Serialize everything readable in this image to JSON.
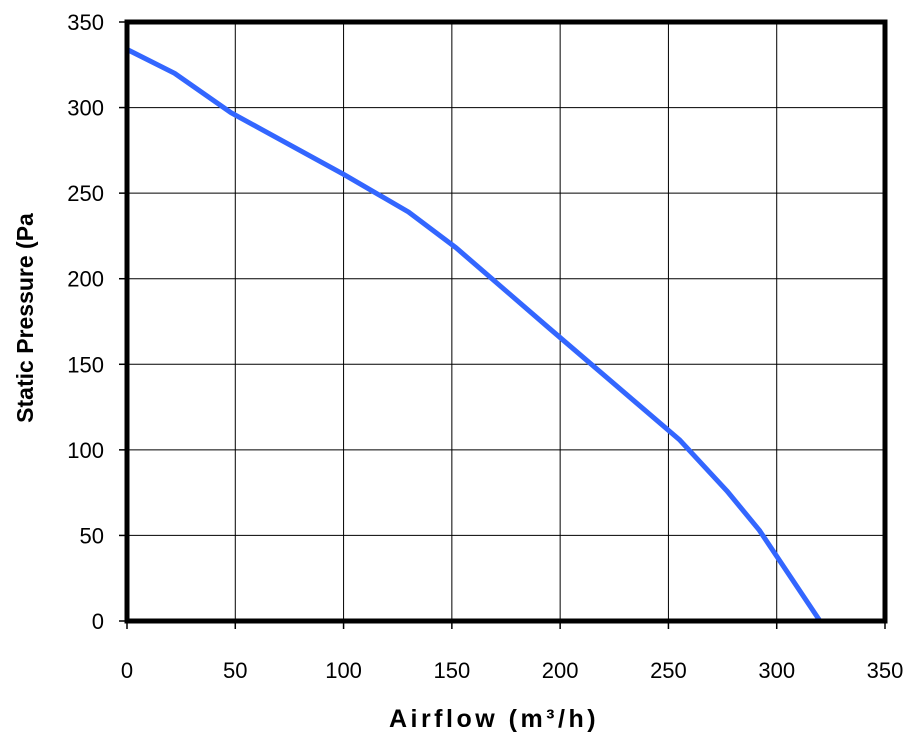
{
  "chart_data": {
    "type": "line",
    "title": "",
    "xlabel": "Airflow (m³/h)",
    "ylabel": "Static Pressure (Pa",
    "xlim": [
      0,
      350
    ],
    "ylim": [
      0,
      350
    ],
    "x_ticks": [
      "0",
      "50",
      "100",
      "150",
      "200",
      "250",
      "300",
      "350"
    ],
    "y_ticks": [
      "0",
      "50",
      "100",
      "150",
      "200",
      "250",
      "300",
      "350"
    ],
    "grid": true,
    "legend": "none",
    "series": [
      {
        "color": "#3366ff",
        "x": [
          0,
          22,
          48,
          100,
          130,
          152,
          195,
          255,
          277,
          292,
          320
        ],
        "y": [
          334,
          320,
          297,
          261,
          239,
          218,
          171,
          106,
          76,
          53,
          0
        ]
      }
    ]
  }
}
